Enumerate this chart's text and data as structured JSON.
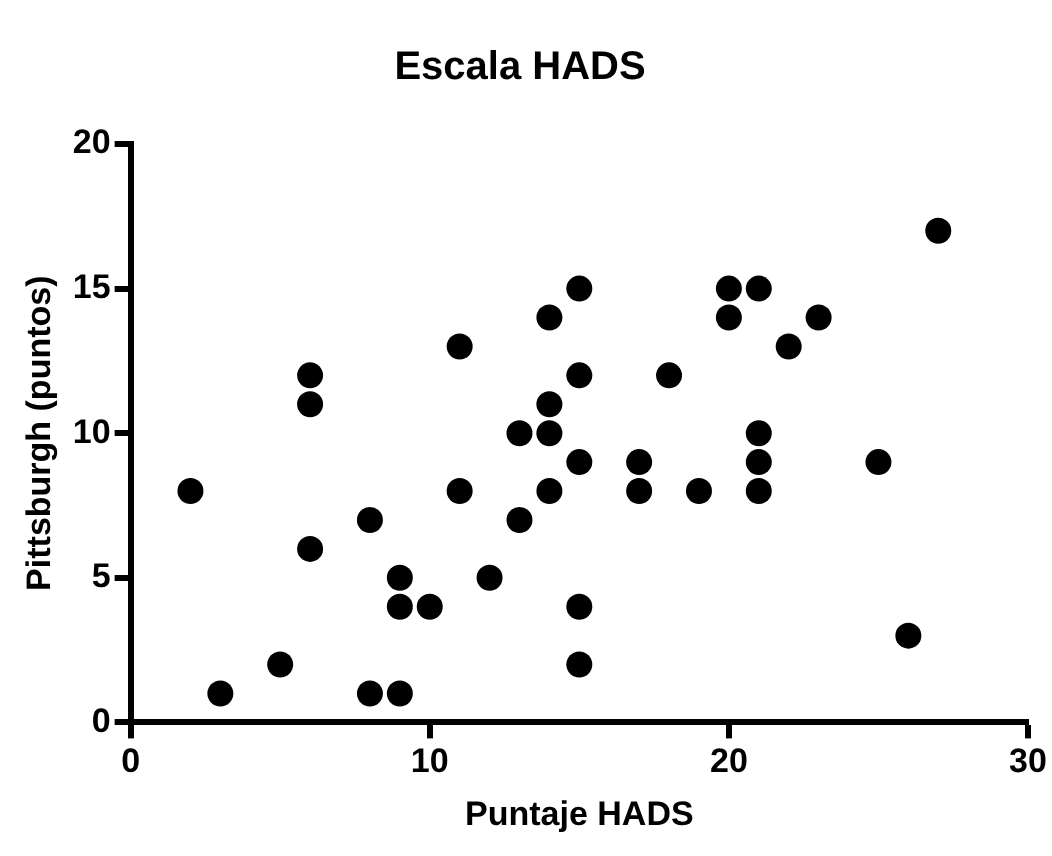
{
  "chart_data": {
    "type": "scatter",
    "title": "Escala HADS",
    "xlabel": "Puntaje HADS",
    "ylabel": "Pittsburgh (puntos)",
    "x": [
      2,
      3,
      5,
      6,
      6,
      6,
      8,
      8,
      9,
      9,
      9,
      10,
      11,
      11,
      12,
      13,
      13,
      14,
      14,
      14,
      14,
      15,
      15,
      15,
      15,
      15,
      17,
      17,
      18,
      19,
      20,
      20,
      21,
      21,
      21,
      21,
      22,
      23,
      25,
      26,
      27
    ],
    "values": [
      8,
      1,
      2,
      12,
      11,
      6,
      7,
      1,
      5,
      4,
      1,
      4,
      13,
      8,
      5,
      10,
      7,
      14,
      11,
      10,
      8,
      15,
      12,
      9,
      4,
      2,
      9,
      8,
      12,
      8,
      15,
      14,
      15,
      10,
      9,
      8,
      13,
      14,
      9,
      3,
      17
    ],
    "color": "#000000",
    "marker": "circle",
    "xlim": [
      0,
      30
    ],
    "xticks": [
      0,
      10,
      20,
      30
    ],
    "ylim": [
      0,
      20
    ],
    "yticks": [
      0,
      5,
      10,
      15,
      20
    ],
    "grid": false,
    "legend": false
  }
}
